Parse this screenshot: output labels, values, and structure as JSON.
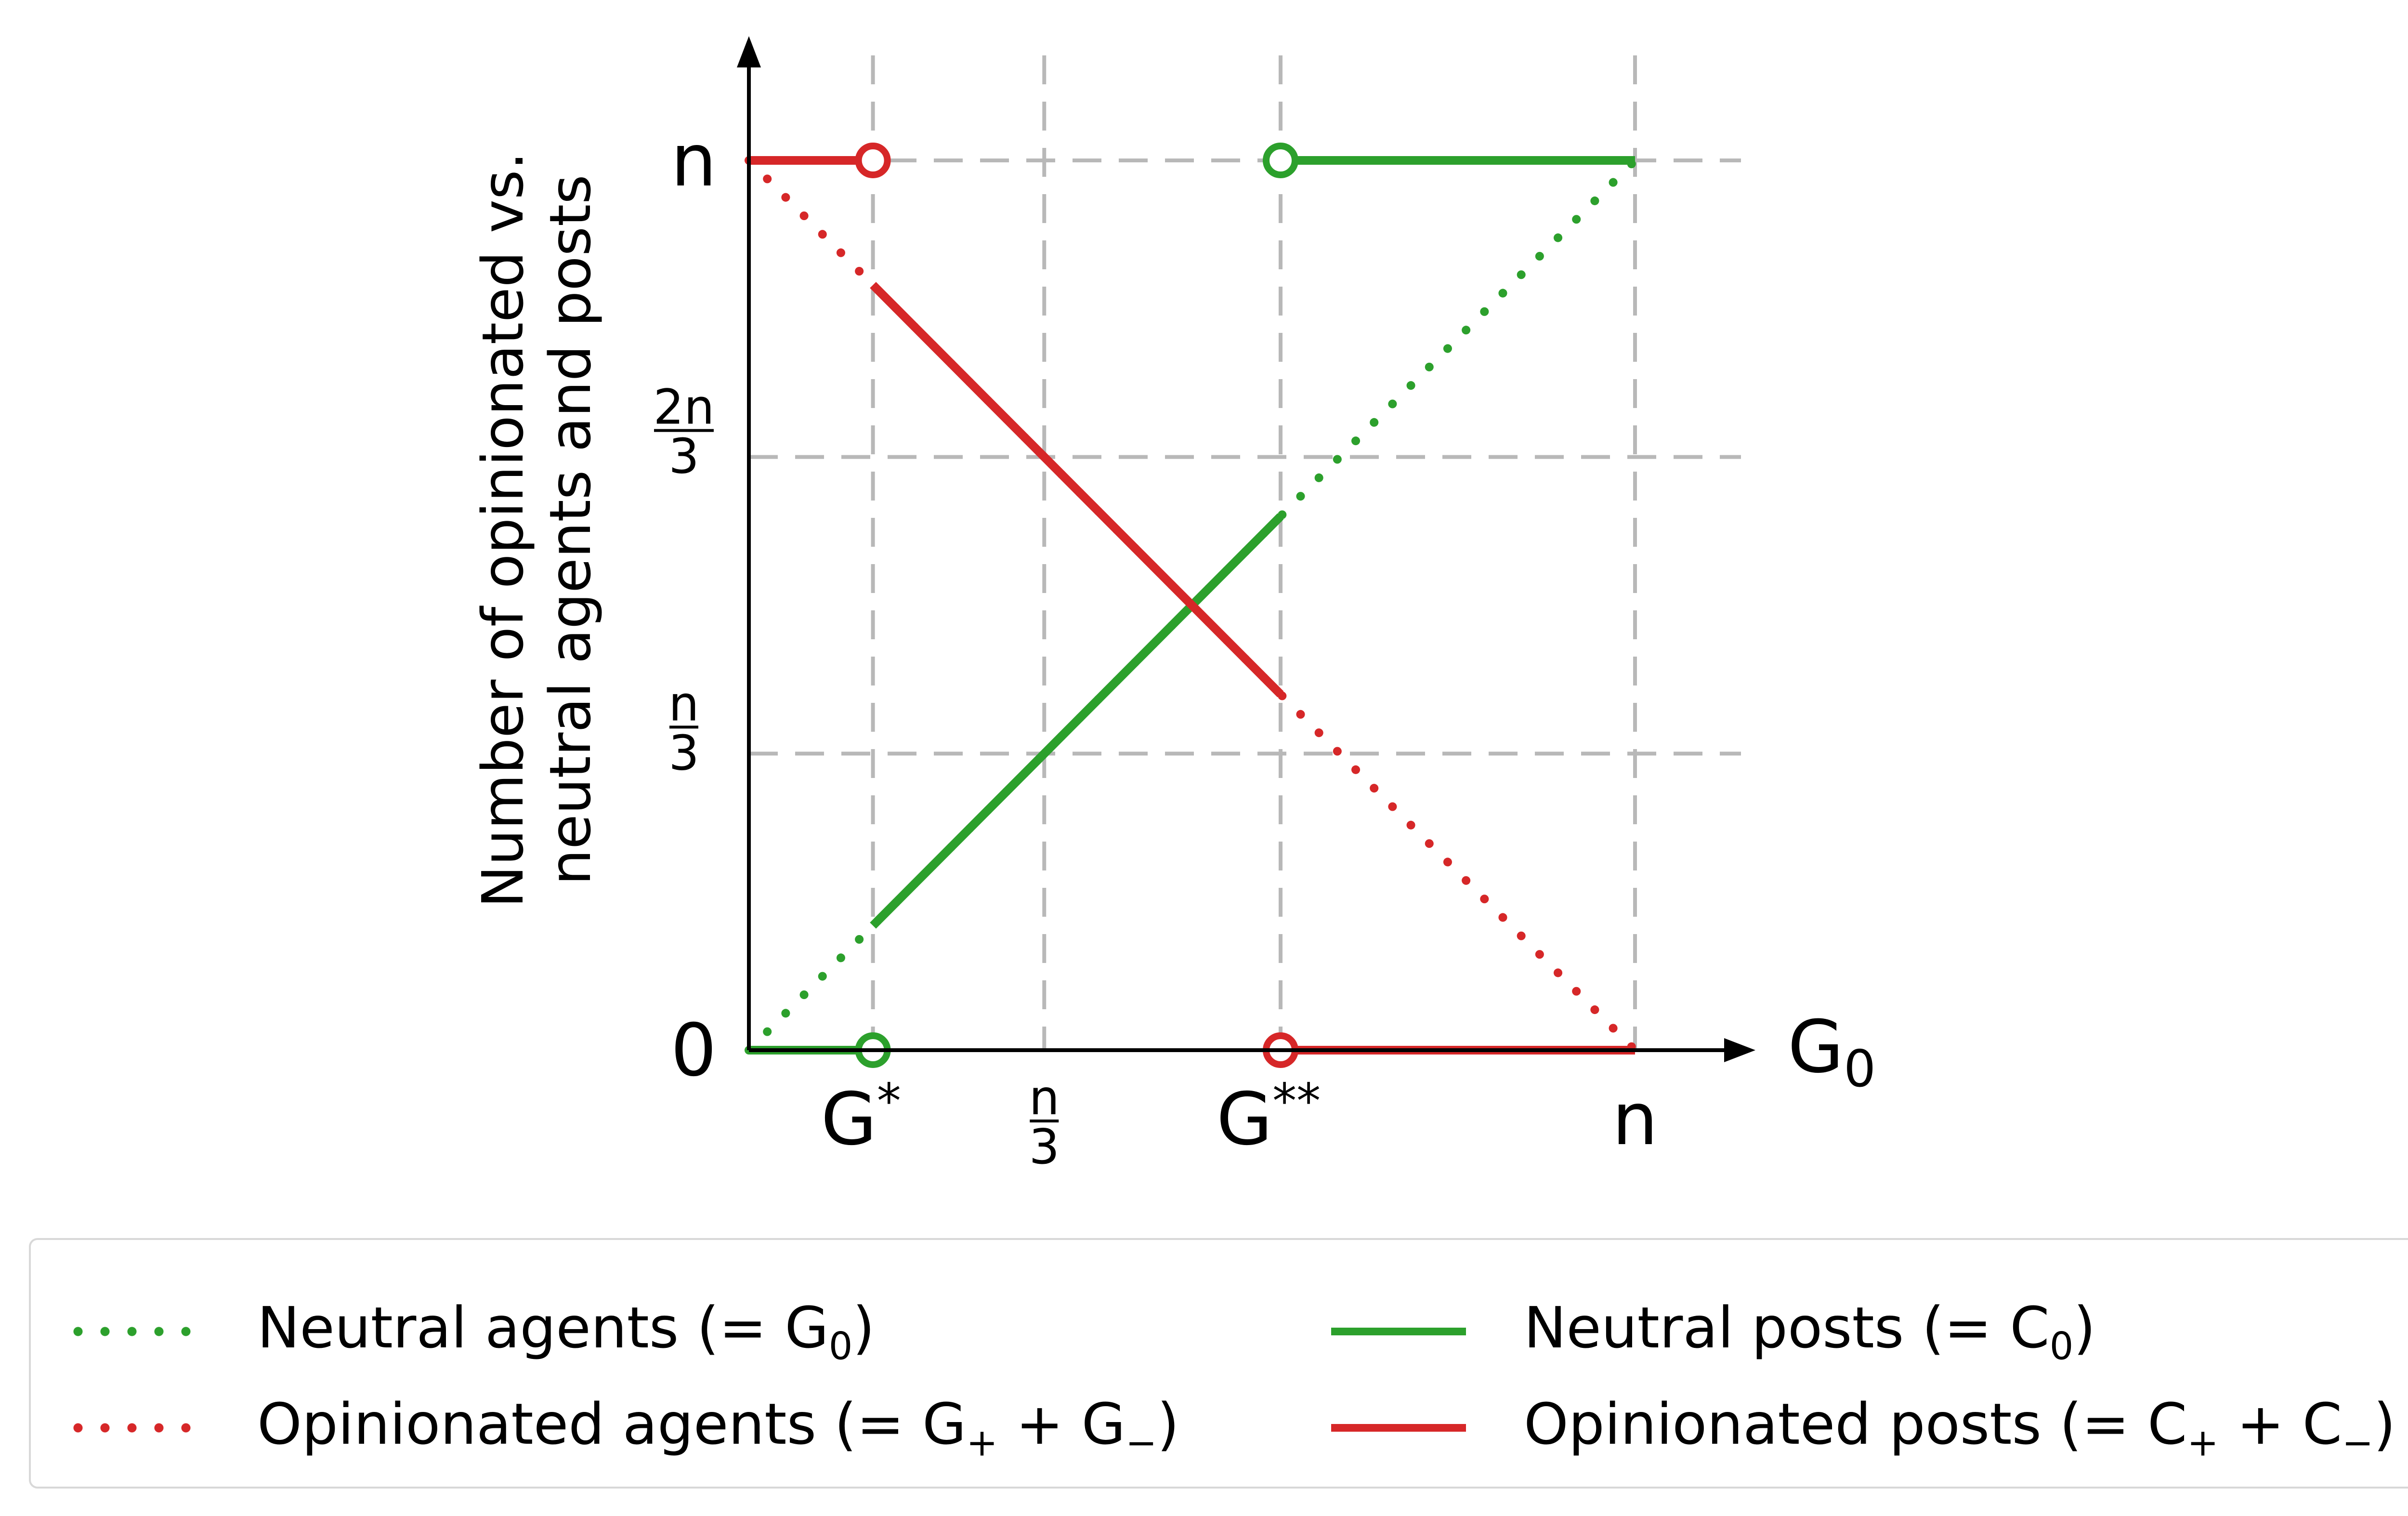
{
  "colors": {
    "neutral": "#2ca02c",
    "opinionated": "#d62728",
    "grid": "#b8b8b8",
    "axis": "#000000"
  },
  "chart_data": {
    "type": "line",
    "ylabel_lines": [
      "Number of opinionated vs.",
      "neutral agents and posts"
    ],
    "xlabel": "G",
    "xlabel_sub": "0",
    "x_ticks": [
      {
        "value": 0.14,
        "label": "G",
        "sup": "*"
      },
      {
        "value": 0.3333,
        "frac": [
          "n",
          "3"
        ]
      },
      {
        "value": 0.6,
        "label": "G",
        "sup": "**"
      },
      {
        "value": 1.0,
        "label": "n"
      }
    ],
    "y_ticks": [
      {
        "value": 0,
        "label": "0"
      },
      {
        "value": 0.3333,
        "frac": [
          "n",
          "3"
        ]
      },
      {
        "value": 0.6667,
        "frac": [
          "2n",
          "3"
        ]
      },
      {
        "value": 1.0,
        "label": "n"
      }
    ],
    "xlim": [
      0,
      1
    ],
    "ylim": [
      0,
      1
    ],
    "grid": true,
    "series": [
      {
        "name": "Neutral agents",
        "style": "dotted",
        "color": "neutral",
        "points": [
          [
            0,
            0
          ],
          [
            1,
            1
          ]
        ]
      },
      {
        "name": "Opinionated agents",
        "style": "dotted",
        "color": "opinionated",
        "points": [
          [
            0,
            1
          ],
          [
            1,
            0
          ]
        ]
      },
      {
        "name": "Neutral posts",
        "style": "solid",
        "color": "neutral",
        "segments": [
          [
            [
              0,
              0
            ],
            [
              0.14,
              0
            ]
          ],
          [
            [
              0.14,
              0.14
            ],
            [
              0.6,
              0.6
            ]
          ],
          [
            [
              0.6,
              1
            ],
            [
              1,
              1
            ]
          ]
        ]
      },
      {
        "name": "Opinionated posts",
        "style": "solid",
        "color": "opinionated",
        "segments": [
          [
            [
              0,
              1
            ],
            [
              0.14,
              1
            ]
          ],
          [
            [
              0.14,
              0.86
            ],
            [
              0.6,
              0.4
            ]
          ],
          [
            [
              0.6,
              0
            ],
            [
              1,
              0
            ]
          ]
        ]
      }
    ],
    "open_markers": [
      {
        "x": 0.14,
        "y": 1,
        "color": "opinionated"
      },
      {
        "x": 0.14,
        "y": 0,
        "color": "neutral"
      },
      {
        "x": 0.6,
        "y": 1,
        "color": "neutral"
      },
      {
        "x": 0.6,
        "y": 0,
        "color": "opinionated"
      }
    ]
  },
  "legend": [
    {
      "label": "Neutral agents (",
      "math": "= G",
      "sub": "0",
      "tail": ")",
      "style": "dotted",
      "color": "neutral"
    },
    {
      "label": "Opinionated agents (",
      "math": "= G",
      "sub": "+",
      "mid": " + G",
      "sub2": "−",
      "tail": ")",
      "style": "dotted",
      "color": "opinionated"
    },
    {
      "label": "Neutral posts (",
      "math": "= C",
      "sub": "0",
      "tail": ")",
      "style": "solid",
      "color": "neutral"
    },
    {
      "label": "Opinionated posts (",
      "math": "= C",
      "sub": "+",
      "mid": " + C",
      "sub2": "−",
      "tail": ")",
      "style": "solid",
      "color": "opinionated"
    }
  ]
}
